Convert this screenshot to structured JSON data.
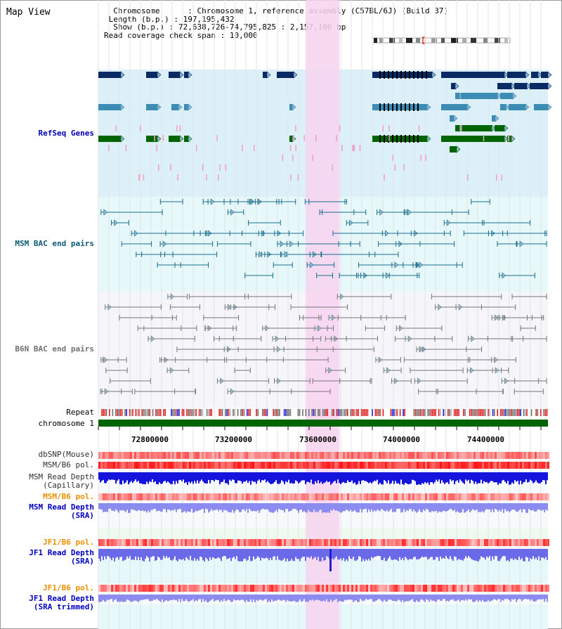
{
  "window": {
    "title": "Map View"
  },
  "info": {
    "chromosome_label": "Chromosome",
    "chromosome_value": "Chromosome 1, reference assembly (C57BL/6J) (Build 37)",
    "length_label": "Length (b.p.)",
    "length_value": "197,195,432",
    "show_label": "Show (b.p.)",
    "show_value": "72,638,726-74,795,825 : 2,157,100 bp",
    "coverage_label": "Read coverage check span",
    "coverage_value": "10,000"
  },
  "tracks": {
    "refseq": "RefSeq Genes",
    "msm_bac": "MSM BAC end pairs",
    "b6n_bac": "B6N BAC end pairs",
    "repeat": "Repeat",
    "chromosome": "chromosome 1",
    "dbsnp": "dbSNP(Mouse)",
    "msm_b6_pol": "MSM/B6 pol.",
    "msm_read_depth_cap_1": "MSM Read Depth",
    "msm_read_depth_cap_2": "(Capillary)",
    "msm_b6_pol_2": "MSM/B6 pol.",
    "msm_read_depth_sra_1": "MSM Read Depth",
    "msm_read_depth_sra_2": "(SRA)",
    "jf1_b6_pol": "JF1/B6 pol.",
    "jf1_read_depth_sra_1": "JF1 Read Depth",
    "jf1_read_depth_sra_2": "(SRA)",
    "jf1_b6_pol_2": "JF1/B6 pol.",
    "jf1_read_depth_trim_1": "JF1 Read Depth",
    "jf1_read_depth_trim_2": "(SRA trimmed)"
  },
  "axis": {
    "ticks": [
      "72800000",
      "73200000",
      "73600000",
      "74000000",
      "74400000"
    ]
  },
  "colors": {
    "refseq_bg": "#dcf0fa",
    "msm_bg": "#e6f8fa",
    "b6n_bg": "#f5f5fa",
    "highlight": "#f8d2f0",
    "gene_dark": "#0a2a64",
    "gene_mid": "#3c8cb4",
    "gene_green": "#006400",
    "msm_line": "#1a6e8c",
    "b6n_line": "#787878",
    "chrom_bar": "#006400",
    "depth_blue": "#1414dc",
    "depth_light": "#8c8cf0"
  }
}
